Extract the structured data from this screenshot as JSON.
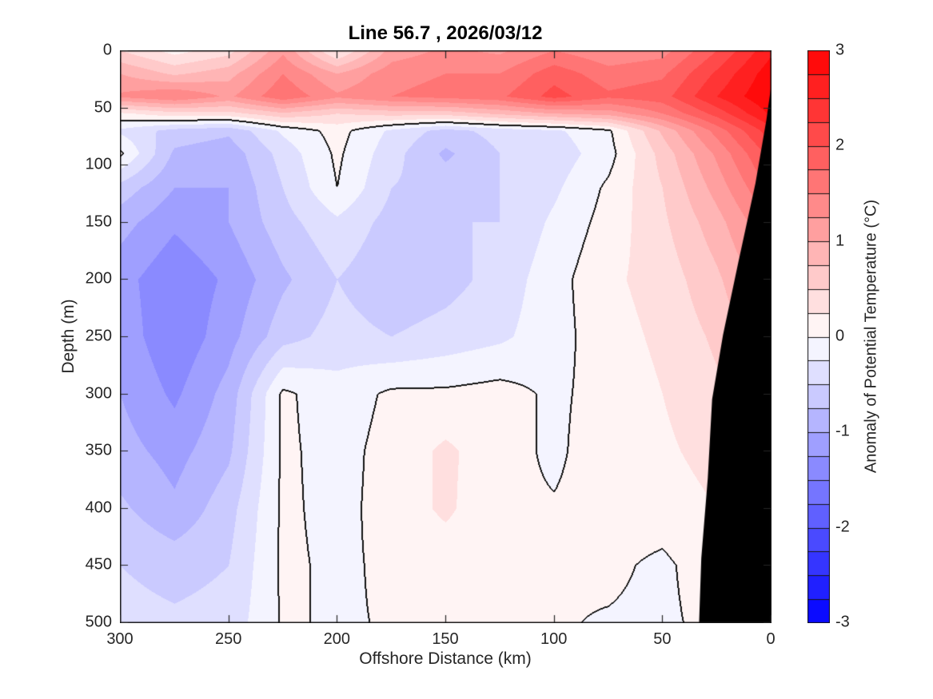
{
  "chart_data": {
    "type": "heatmap",
    "subtype": "filled-contour-ocean-section",
    "title": "Line 56.7 , 2026/03/12",
    "xlabel": "Offshore Distance (km)",
    "ylabel": "Depth (m)",
    "x_axis": {
      "range": [
        300,
        0
      ],
      "reversed": true,
      "ticks": [
        300,
        250,
        200,
        150,
        100,
        50,
        0
      ]
    },
    "y_axis": {
      "range": [
        0,
        500
      ],
      "depth_down": true,
      "ticks": [
        0,
        50,
        100,
        150,
        200,
        250,
        300,
        350,
        400,
        450,
        500
      ]
    },
    "colorbar": {
      "label": "Anomaly of Potential Temperature (°C)",
      "ticks": [
        3,
        2,
        1,
        0,
        -1,
        -2,
        -3
      ],
      "range": [
        -3,
        3
      ],
      "band_step": 0.25,
      "colormap": "blue-white-red",
      "max_color": "#ff0000",
      "mid_color": "#ffffff",
      "min_color": "#0000ff"
    },
    "contour_line_level": 0,
    "grid_x_km": [
      300,
      275,
      250,
      225,
      200,
      175,
      150,
      125,
      100,
      75,
      50,
      25,
      0
    ],
    "grid_depth_m": [
      0,
      20,
      40,
      55,
      70,
      90,
      120,
      150,
      200,
      250,
      300,
      350,
      400,
      450,
      500
    ],
    "anomaly_degC": [
      [
        0.5,
        0.15,
        0.4,
        1.2,
        0.2,
        1.1,
        1.3,
        1.2,
        1.5,
        1.3,
        1.4,
        2.0,
        2.7
      ],
      [
        1.0,
        0.7,
        0.9,
        1.5,
        1.0,
        1.4,
        1.5,
        1.5,
        1.9,
        1.6,
        1.7,
        2.3,
        2.9
      ],
      [
        1.3,
        1.5,
        1.2,
        1.7,
        1.3,
        1.5,
        1.6,
        1.7,
        2.1,
        1.8,
        1.9,
        2.5,
        3.0
      ],
      [
        0.2,
        0.4,
        0.4,
        0.7,
        0.5,
        0.6,
        0.6,
        0.8,
        1.0,
        1.1,
        1.5,
        2.1,
        2.8
      ],
      [
        -0.3,
        -0.6,
        -0.7,
        -0.2,
        0.1,
        -0.3,
        -0.6,
        -0.4,
        -0.3,
        -0.05,
        0.8,
        1.6,
        2.4
      ],
      [
        0.05,
        -0.8,
        -0.9,
        -0.4,
        0.05,
        -0.4,
        -0.8,
        -0.5,
        -0.4,
        -0.1,
        0.6,
        1.3,
        2.1
      ],
      [
        -0.6,
        -1.0,
        -1.0,
        -0.5,
        0.0,
        -0.5,
        -0.6,
        -0.5,
        -0.3,
        0.05,
        0.5,
        1.1,
        1.8
      ],
      [
        -0.9,
        -1.2,
        -1.0,
        -0.6,
        -0.3,
        -0.6,
        -0.5,
        -0.5,
        -0.2,
        0.1,
        0.45,
        0.9,
        1.5
      ],
      [
        -1.15,
        -1.45,
        -1.2,
        -0.8,
        -0.5,
        -0.7,
        -0.6,
        -0.4,
        -0.1,
        0.2,
        0.35,
        0.7,
        1.2
      ],
      [
        -1.1,
        -1.45,
        -1.1,
        -0.6,
        -0.4,
        -0.5,
        -0.4,
        -0.3,
        -0.1,
        0.15,
        0.3,
        0.55,
        1.0
      ],
      [
        -1.0,
        -1.3,
        -0.9,
        0.05,
        -0.15,
        0.05,
        0.05,
        0.1,
        -0.05,
        0.1,
        0.25,
        0.45,
        0.8
      ],
      [
        -0.9,
        -1.1,
        -0.8,
        0.05,
        -0.1,
        0.1,
        0.3,
        0.1,
        -0.05,
        0.15,
        0.2,
        0.35,
        0.7
      ],
      [
        -0.7,
        -0.95,
        -0.6,
        0.05,
        -0.08,
        0.1,
        0.3,
        0.05,
        0.02,
        0.1,
        0.12,
        0.25,
        0.55
      ],
      [
        -0.5,
        -0.6,
        -0.5,
        0.05,
        -0.05,
        0.05,
        0.1,
        0.05,
        0.02,
        0.05,
        -0.05,
        0.15,
        0.4
      ],
      [
        -0.4,
        -0.45,
        -0.4,
        0.03,
        -0.03,
        0.02,
        0.05,
        0.03,
        0.02,
        -0.02,
        -0.05,
        0.08,
        0.3
      ]
    ],
    "land_mask_km_depth": [
      [
        0,
        34
      ],
      [
        2,
        61
      ],
      [
        7,
        116
      ],
      [
        15,
        186
      ],
      [
        22,
        249
      ],
      [
        27,
        305
      ],
      [
        29,
        374
      ],
      [
        32,
        444
      ],
      [
        33,
        500
      ],
      [
        0,
        500
      ]
    ],
    "land_mask_color": "#000000"
  }
}
